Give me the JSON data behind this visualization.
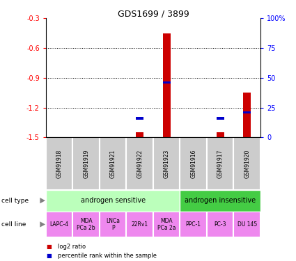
{
  "title": "GDS1699 / 3899",
  "samples": [
    "GSM91918",
    "GSM91919",
    "GSM91921",
    "GSM91922",
    "GSM91923",
    "GSM91916",
    "GSM91917",
    "GSM91920"
  ],
  "log2_ratio": [
    0,
    0,
    0,
    -1.45,
    -0.45,
    0,
    -1.45,
    -1.05
  ],
  "percentile_rank": [
    0,
    0,
    0,
    15,
    45,
    0,
    15,
    20
  ],
  "ylim_left": [
    -1.5,
    -0.3
  ],
  "yticks_left": [
    -1.5,
    -1.2,
    -0.9,
    -0.6,
    -0.3
  ],
  "grid_lines": [
    -1.2,
    -0.9,
    -0.6
  ],
  "cell_type_groups": [
    {
      "label": "androgen sensitive",
      "span": [
        0,
        5
      ],
      "color": "#bbffbb"
    },
    {
      "label": "androgen insensitive",
      "span": [
        5,
        8
      ],
      "color": "#44cc44"
    }
  ],
  "cell_lines": [
    "LAPC-4",
    "MDA\nPCa 2b",
    "LNCa\nP",
    "22Rv1",
    "MDA\nPCa 2a",
    "PPC-1",
    "PC-3",
    "DU 145"
  ],
  "cell_line_color": "#ee88ee",
  "sample_box_color": "#cccccc",
  "red_color": "#cc0000",
  "blue_color": "#0000cc",
  "legend_red": "log2 ratio",
  "legend_blue": "percentile rank within the sample",
  "right_tick_labels": [
    "0",
    "25",
    "50",
    "75",
    "100%"
  ]
}
